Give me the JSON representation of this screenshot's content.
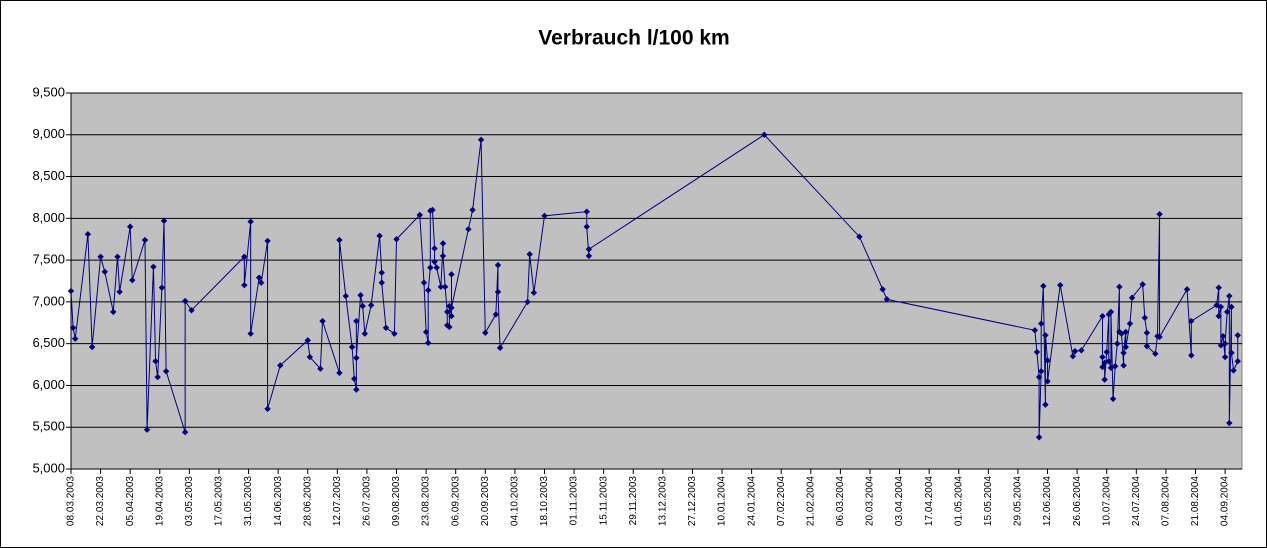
{
  "chart_data": {
    "type": "line",
    "title": "Verbrauch l/100 km",
    "color": "#000080",
    "marker": "diamond",
    "background": "#c0c0c0",
    "grid": true,
    "xlim": [
      "08.03.2003",
      "12.09.2004"
    ],
    "xticks": [
      "08.03.2003",
      "22.03.2003",
      "05.04.2003",
      "19.04.2003",
      "03.05.2003",
      "17.05.2003",
      "31.05.2003",
      "14.06.2003",
      "28.06.2003",
      "12.07.2003",
      "26.07.2003",
      "09.08.2003",
      "23.08.2003",
      "06.09.2003",
      "20.09.2003",
      "04.10.2003",
      "18.10.2003",
      "01.11.2003",
      "15.11.2003",
      "29.11.2003",
      "13.12.2003",
      "27.12.2003",
      "10.01.2004",
      "24.01.2004",
      "07.02.2004",
      "21.02.2004",
      "06.03.2004",
      "20.03.2004",
      "03.04.2004",
      "17.04.2004",
      "01.05.2004",
      "15.05.2004",
      "29.05.2004",
      "12.06.2004",
      "26.06.2004",
      "10.07.2004",
      "24.07.2004",
      "07.08.2004",
      "21.08.2004",
      "04.09.2004"
    ],
    "ylim": [
      5,
      9.5
    ],
    "yticks": [
      {
        "value": 5,
        "label": "5,000"
      },
      {
        "value": 5.5,
        "label": "5,500"
      },
      {
        "value": 6,
        "label": "6,000"
      },
      {
        "value": 6.5,
        "label": "6,500"
      },
      {
        "value": 7,
        "label": "7,000"
      },
      {
        "value": 7.5,
        "label": "7,500"
      },
      {
        "value": 8,
        "label": "8,000"
      },
      {
        "value": 8.5,
        "label": "8,500"
      },
      {
        "value": 9,
        "label": "9,000"
      },
      {
        "value": 9.5,
        "label": "9,500"
      }
    ],
    "x": [
      "08.03.2003",
      "09.03.2003",
      "10.03.2003",
      "16.03.2003",
      "18.03.2003",
      "22.03.2003",
      "24.03.2003",
      "28.03.2003",
      "30.03.2003",
      "31.03.2003",
      "05.04.2003",
      "06.04.2003",
      "12.04.2003",
      "13.04.2003",
      "16.04.2003",
      "17.04.2003",
      "18.04.2003",
      "20.04.2003",
      "21.04.2003",
      "22.04.2003",
      "01.05.2003",
      "01.05.2003",
      "04.05.2003",
      "29.05.2003",
      "29.05.2003",
      "01.06.2003",
      "01.06.2003",
      "05.06.2003",
      "06.06.2003",
      "09.06.2003",
      "09.06.2003",
      "15.06.2003",
      "28.06.2003",
      "29.06.2003",
      "04.07.2003",
      "05.07.2003",
      "13.07.2003",
      "13.07.2003",
      "16.07.2003",
      "19.07.2003",
      "20.07.2003",
      "21.07.2003",
      "21.07.2003",
      "21.07.2003",
      "23.07.2003",
      "24.07.2003",
      "25.07.2003",
      "28.07.2003",
      "01.08.2003",
      "02.08.2003",
      "02.08.2003",
      "04.08.2003",
      "08.08.2003",
      "09.08.2003",
      "20.08.2003",
      "22.08.2003",
      "23.08.2003",
      "24.08.2003",
      "24.08.2003",
      "25.08.2003",
      "25.08.2003",
      "26.08.2003",
      "27.08.2003",
      "27.08.2003",
      "28.08.2003",
      "30.08.2003",
      "31.08.2003",
      "31.08.2003",
      "01.09.2003",
      "02.09.2003",
      "02.09.2003",
      "03.09.2003",
      "03.09.2003",
      "04.09.2003",
      "04.09.2003",
      "04.09.2003",
      "12.09.2003",
      "14.09.2003",
      "18.09.2003",
      "20.09.2003",
      "25.09.2003",
      "26.09.2003",
      "26.09.2003",
      "27.09.2003",
      "10.10.2003",
      "11.10.2003",
      "13.10.2003",
      "18.10.2003",
      "07.11.2003",
      "07.11.2003",
      "08.11.2003",
      "08.11.2003",
      "30.01.2004",
      "15.03.2004",
      "26.03.2004",
      "28.03.2004",
      "06.06.2004",
      "07.06.2004",
      "08.06.2004",
      "08.06.2004",
      "09.06.2004",
      "09.06.2004",
      "10.06.2004",
      "11.06.2004",
      "11.06.2004",
      "12.06.2004",
      "12.06.2004",
      "18.06.2004",
      "24.06.2004",
      "25.06.2004",
      "28.06.2004",
      "08.07.2004",
      "08.07.2004",
      "08.07.2004",
      "09.07.2004",
      "09.07.2004",
      "10.07.2004",
      "11.07.2004",
      "11.07.2004",
      "12.07.2004",
      "12.07.2004",
      "13.07.2004",
      "14.07.2004",
      "15.07.2004",
      "16.07.2004",
      "16.07.2004",
      "17.07.2004",
      "18.07.2004",
      "18.07.2004",
      "19.07.2004",
      "19.07.2004",
      "21.07.2004",
      "22.07.2004",
      "27.07.2004",
      "28.07.2004",
      "29.07.2004",
      "29.07.2004",
      "02.08.2004",
      "03.08.2004",
      "04.08.2004",
      "04.08.2004",
      "17.08.2004",
      "19.08.2004",
      "19.08.2004",
      "31.08.2004",
      "01.09.2004",
      "01.09.2004",
      "02.09.2004",
      "02.09.2004",
      "03.09.2004",
      "04.09.2004",
      "04.09.2004",
      "05.09.2004",
      "06.09.2004",
      "06.09.2004",
      "07.09.2004",
      "07.09.2004",
      "08.09.2004",
      "10.09.2004",
      "10.09.2004"
    ],
    "values": [
      7.13,
      6.69,
      6.56,
      7.81,
      6.46,
      7.54,
      7.36,
      6.88,
      7.54,
      7.12,
      7.9,
      7.26,
      7.74,
      5.47,
      7.42,
      6.29,
      6.1,
      7.17,
      7.97,
      6.17,
      5.44,
      7.01,
      6.9,
      7.54,
      7.2,
      7.96,
      6.62,
      7.29,
      7.23,
      7.73,
      5.72,
      6.24,
      6.54,
      6.34,
      6.2,
      6.77,
      6.15,
      7.74,
      7.07,
      6.46,
      6.08,
      5.95,
      6.77,
      6.33,
      7.08,
      6.95,
      6.62,
      6.96,
      7.79,
      7.35,
      7.23,
      6.69,
      6.62,
      7.75,
      8.04,
      7.23,
      6.64,
      6.51,
      7.14,
      7.41,
      8.09,
      8.1,
      7.64,
      7.48,
      7.41,
      7.18,
      7.7,
      7.55,
      7.18,
      6.88,
      6.72,
      6.7,
      6.95,
      6.83,
      7.33,
      6.93,
      7.87,
      8.1,
      8.94,
      6.63,
      6.85,
      7.44,
      7.12,
      6.45,
      7.0,
      7.57,
      7.11,
      8.03,
      8.08,
      7.9,
      7.55,
      7.63,
      9.0,
      7.78,
      7.15,
      7.03,
      6.66,
      6.4,
      6.1,
      5.38,
      6.17,
      6.74,
      7.19,
      5.77,
      6.6,
      6.3,
      6.05,
      7.2,
      6.35,
      6.41,
      6.42,
      6.83,
      6.34,
      6.22,
      6.27,
      6.07,
      6.4,
      6.85,
      6.29,
      6.21,
      6.88,
      5.84,
      6.23,
      6.5,
      7.18,
      6.64,
      6.62,
      6.24,
      6.39,
      6.64,
      6.46,
      6.74,
      7.05,
      7.21,
      6.81,
      6.63,
      6.47,
      6.38,
      6.59,
      8.05,
      6.58,
      7.15,
      6.36,
      6.77,
      6.96,
      7.17,
      6.83,
      6.94,
      6.48,
      6.59,
      6.34,
      6.5,
      6.88,
      7.07,
      5.55,
      6.94,
      6.39,
      6.18,
      6.29,
      6.6
    ]
  }
}
